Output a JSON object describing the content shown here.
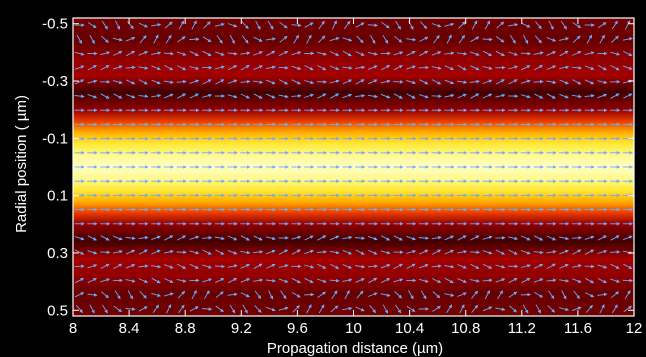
{
  "chart_data": {
    "type": "heatmap",
    "xlabel": "Propagation distance (µm)",
    "ylabel": "Radial position ( µm)",
    "xlim": [
      8,
      12
    ],
    "ylim": [
      -0.52,
      0.52
    ],
    "y_axis_direction": "reversed (-0.5 at top, 0.5 at bottom)",
    "x_ticks": [
      8,
      8.4,
      8.8,
      9.2,
      9.6,
      10,
      10.4,
      10.8,
      11.2,
      11.6,
      12
    ],
    "x_tick_labels": [
      "8",
      "8.4",
      "8.8",
      "9.2",
      "9.6",
      "10",
      "10.4",
      "10.8",
      "11.2",
      "11.6",
      "12"
    ],
    "y_ticks": [
      -0.5,
      -0.3,
      -0.1,
      0.1,
      0.3,
      0.5
    ],
    "y_tick_labels": [
      "-0.5",
      "-0.3",
      "-0.1",
      "0.1",
      "0.3",
      "0.5"
    ],
    "intensity_profile": {
      "description": "field intensity vs radial position, uniform along propagation",
      "radial_position": [
        -0.5,
        -0.44,
        -0.38,
        -0.32,
        -0.26,
        -0.2,
        -0.16,
        -0.12,
        -0.08,
        -0.04,
        0,
        0.04,
        0.08,
        0.12,
        0.16,
        0.2,
        0.26,
        0.32,
        0.38,
        0.44,
        0.5
      ],
      "normalized_intensity": [
        0.22,
        0.2,
        0.3,
        0.34,
        0.12,
        0.3,
        0.55,
        0.75,
        0.88,
        0.96,
        1.0,
        0.96,
        0.88,
        0.75,
        0.55,
        0.3,
        0.12,
        0.34,
        0.3,
        0.2,
        0.22
      ]
    },
    "colormap": [
      "#000000",
      "#5a0000",
      "#a00000",
      "#e02000",
      "#ff8000",
      "#ffe000",
      "#ffffc0"
    ],
    "overlay": {
      "type": "quiver",
      "description": "arrow field pointing along propagation direction; bent arrows in outer rows",
      "color": "#6fa8ff",
      "rows": 21,
      "columns": 44
    },
    "grid": false,
    "legend": "none"
  }
}
